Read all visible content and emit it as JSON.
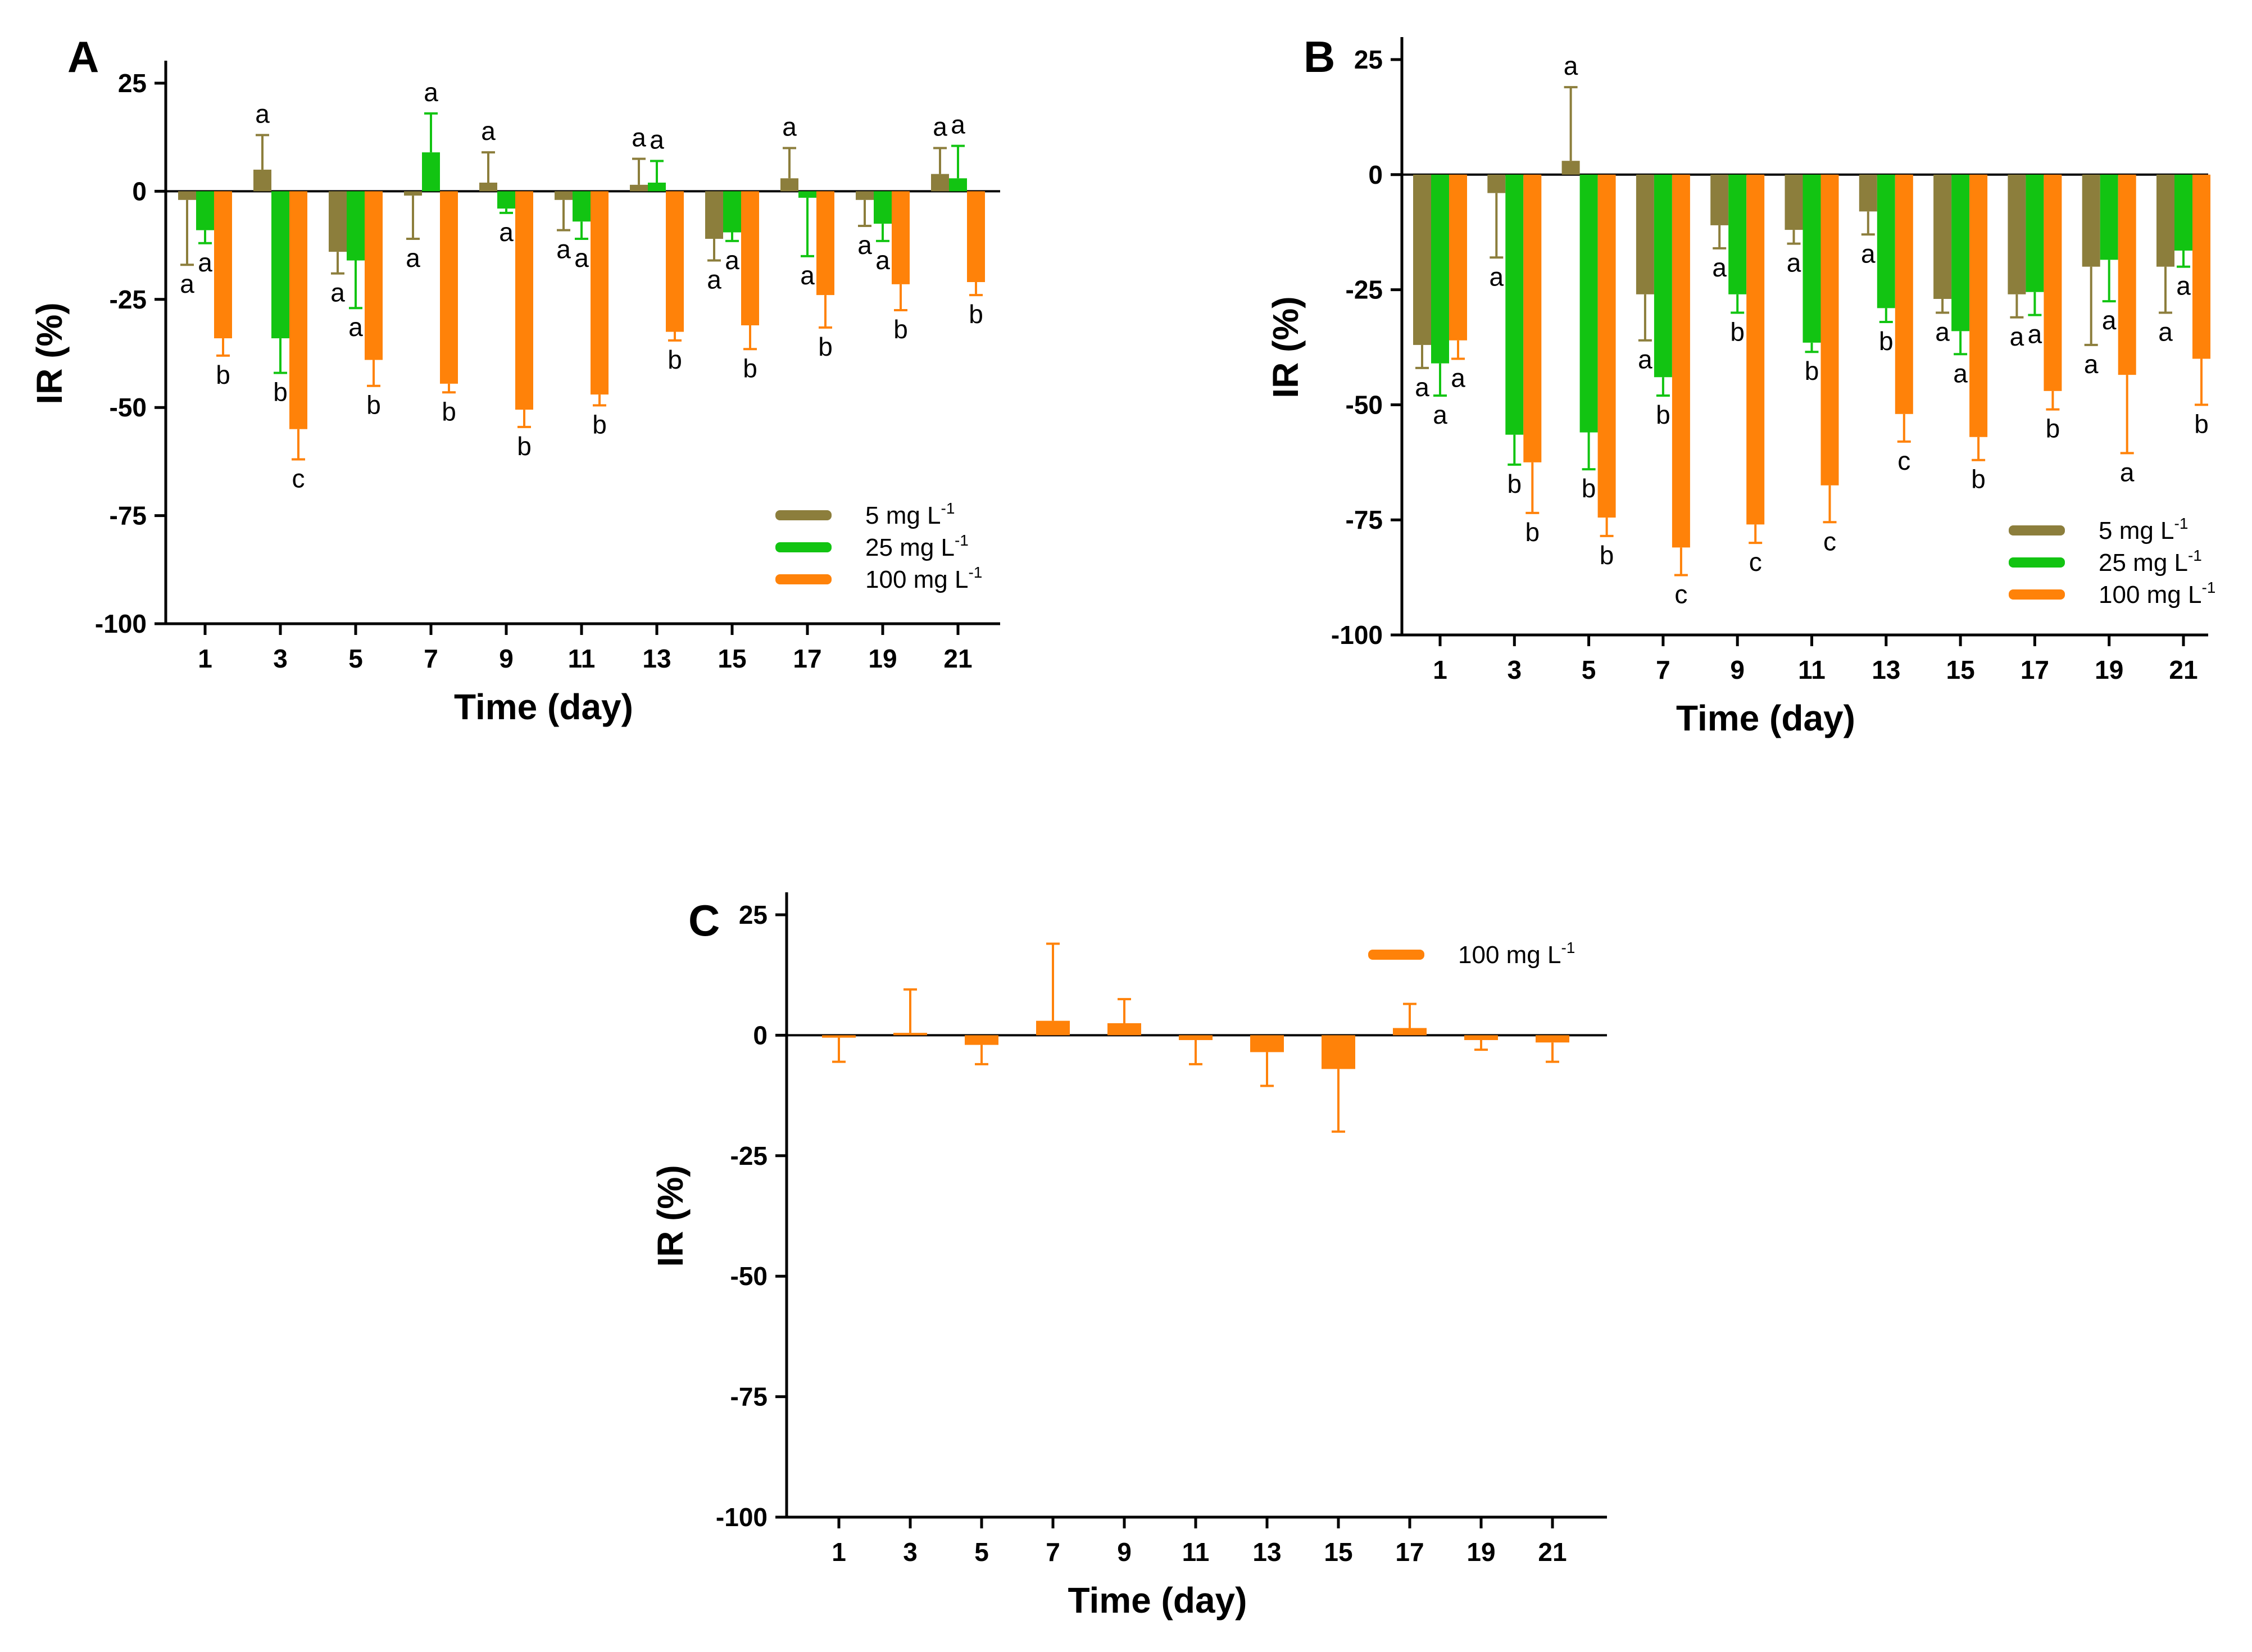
{
  "chart_data": [
    {
      "panel": "A",
      "type": "bar",
      "xlabel": "Time (day)",
      "ylabel": "IR (%)",
      "ylim": [
        -100,
        25
      ],
      "yticks": [
        "25",
        "0",
        "-25",
        "-50",
        "-75",
        "-100"
      ],
      "categories": [
        "1",
        "3",
        "5",
        "7",
        "9",
        "11",
        "13",
        "15",
        "17",
        "19",
        "21"
      ],
      "legend_position": "bottom-right",
      "series": [
        {
          "name": "5 mg L",
          "sup": "-1",
          "color": "#8c7e3c",
          "values": [
            -2,
            5,
            -14,
            -1,
            2,
            -2,
            1.5,
            -11,
            3,
            -2,
            4
          ],
          "errors": [
            15,
            8,
            5,
            10,
            7,
            7,
            6,
            5,
            7,
            6,
            6
          ],
          "labels": [
            "a",
            "a",
            "a",
            "a",
            "a",
            "a",
            "a",
            "a",
            "a",
            "a",
            "a"
          ]
        },
        {
          "name": "25 mg L",
          "sup": "-1",
          "color": "#12c412",
          "values": [
            -9,
            -34,
            -16,
            9,
            -4,
            -7,
            2,
            -9.5,
            -1.5,
            -7.5,
            3
          ],
          "errors": [
            3,
            8,
            11,
            9,
            1,
            4,
            5,
            2,
            13.5,
            4,
            7.5
          ],
          "labels": [
            "a",
            "b",
            "a",
            "a",
            "a",
            "a",
            "a",
            "a",
            "a",
            "a",
            "a"
          ]
        },
        {
          "name": "100 mg L",
          "sup": "-1",
          "color": "#ff8209",
          "values": [
            -34,
            -55,
            -39,
            -44.5,
            -50.5,
            -47,
            -32.5,
            -31,
            -24,
            -21.5,
            -21
          ],
          "errors": [
            4,
            7,
            6,
            2,
            4,
            2.5,
            2,
            5.5,
            7.5,
            6,
            3
          ],
          "labels": [
            "b",
            "c",
            "b",
            "b",
            "b",
            "b",
            "b",
            "b",
            "b",
            "b",
            "b"
          ]
        }
      ]
    },
    {
      "panel": "B",
      "type": "bar",
      "xlabel": "Time (day)",
      "ylabel": "IR (%)",
      "ylim": [
        -100,
        25
      ],
      "yticks": [
        "25",
        "0",
        "-25",
        "-50",
        "-75",
        "-100"
      ],
      "categories": [
        "1",
        "3",
        "5",
        "7",
        "9",
        "11",
        "13",
        "15",
        "17",
        "19",
        "21"
      ],
      "legend_position": "bottom-right",
      "series": [
        {
          "name": "5 mg L",
          "sup": "-1",
          "color": "#8c7e3c",
          "values": [
            -37,
            -4,
            3,
            -26,
            -11,
            -12,
            -8,
            -27,
            -26,
            -20,
            -20
          ],
          "errors": [
            5,
            14,
            16,
            10,
            5,
            3,
            5,
            3,
            5,
            17,
            10
          ],
          "labels": [
            "a",
            "a",
            "a",
            "a",
            "a",
            "a",
            "a",
            "a",
            "a",
            "a",
            "a"
          ]
        },
        {
          "name": "25 mg L",
          "sup": "-1",
          "color": "#12c412",
          "values": [
            -41,
            -56.5,
            -56,
            -44,
            -26,
            -36.5,
            -29,
            -34,
            -25.5,
            -18.5,
            -16.5
          ],
          "errors": [
            7,
            6.5,
            8,
            4,
            4,
            2,
            3,
            5,
            5,
            9,
            3.5
          ],
          "labels": [
            "a",
            "b",
            "b",
            "b",
            "b",
            "b",
            "b",
            "a",
            "a",
            "a",
            "a"
          ]
        },
        {
          "name": "100 mg L",
          "sup": "-1",
          "color": "#ff8209",
          "values": [
            -36,
            -62.5,
            -74.5,
            -81,
            -76,
            -67.5,
            -52,
            -57,
            -47,
            -43.5,
            -40
          ],
          "errors": [
            4,
            11,
            4,
            6,
            4,
            8,
            6,
            5,
            4,
            17,
            10
          ],
          "labels": [
            "a",
            "b",
            "b",
            "c",
            "c",
            "c",
            "c",
            "b",
            "b",
            "a",
            "b"
          ]
        }
      ]
    },
    {
      "panel": "C",
      "type": "bar",
      "xlabel": "Time (day)",
      "ylabel": "IR (%)",
      "ylim": [
        -100,
        25
      ],
      "yticks": [
        "25",
        "0",
        "-25",
        "-50",
        "-75",
        "-100"
      ],
      "categories": [
        "1",
        "3",
        "5",
        "7",
        "9",
        "11",
        "13",
        "15",
        "17",
        "19",
        "21"
      ],
      "legend_position": "top-right",
      "series": [
        {
          "name": "100 mg L",
          "sup": "-1",
          "color": "#ff8209",
          "values": [
            -0.5,
            0.5,
            -2,
            3,
            2.5,
            -1,
            -3.5,
            -7,
            1.5,
            -1,
            -1.5
          ],
          "errors": [
            5,
            9,
            4,
            16,
            5,
            5,
            7,
            13,
            5,
            2,
            4
          ],
          "labels": [
            "",
            "",
            "",
            "",
            "",
            "",
            "",
            "",
            "",
            "",
            ""
          ]
        }
      ]
    }
  ]
}
